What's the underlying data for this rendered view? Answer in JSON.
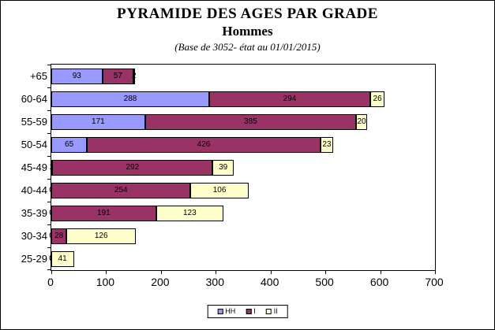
{
  "header": {
    "title": "PYRAMIDE DES AGES PAR GRADE",
    "subtitle": "Hommes",
    "note": "(Base de 3052- état au 01/01/2015)"
  },
  "chart_data": {
    "type": "bar",
    "orientation": "horizontal",
    "stacked": true,
    "title": "PYRAMIDE DES AGES PAR GRADE",
    "subtitle": "Hommes",
    "annotation": "(Base de 3052- état au 01/01/2015)",
    "categories": [
      "+65",
      "60-64",
      "55-59",
      "50-54",
      "45-49",
      "40-44",
      "35-39",
      "30-34",
      "25-29"
    ],
    "series": [
      {
        "name": "HH",
        "color": "#9999FF",
        "values": [
          93,
          288,
          171,
          65,
          2,
          0,
          0,
          0,
          0
        ]
      },
      {
        "name": "I",
        "color": "#993366",
        "values": [
          57,
          294,
          385,
          426,
          292,
          254,
          191,
          28,
          0
        ]
      },
      {
        "name": "II",
        "color": "#FFFFCC",
        "values": [
          2,
          26,
          20,
          23,
          39,
          106,
          123,
          126,
          41
        ]
      }
    ],
    "xlabel": "",
    "ylabel": "",
    "xlim": [
      0,
      700
    ],
    "xticks": [
      0,
      100,
      200,
      300,
      400,
      500,
      600,
      700
    ],
    "grid": false,
    "legend_position": "bottom-center",
    "data_labels": true
  }
}
